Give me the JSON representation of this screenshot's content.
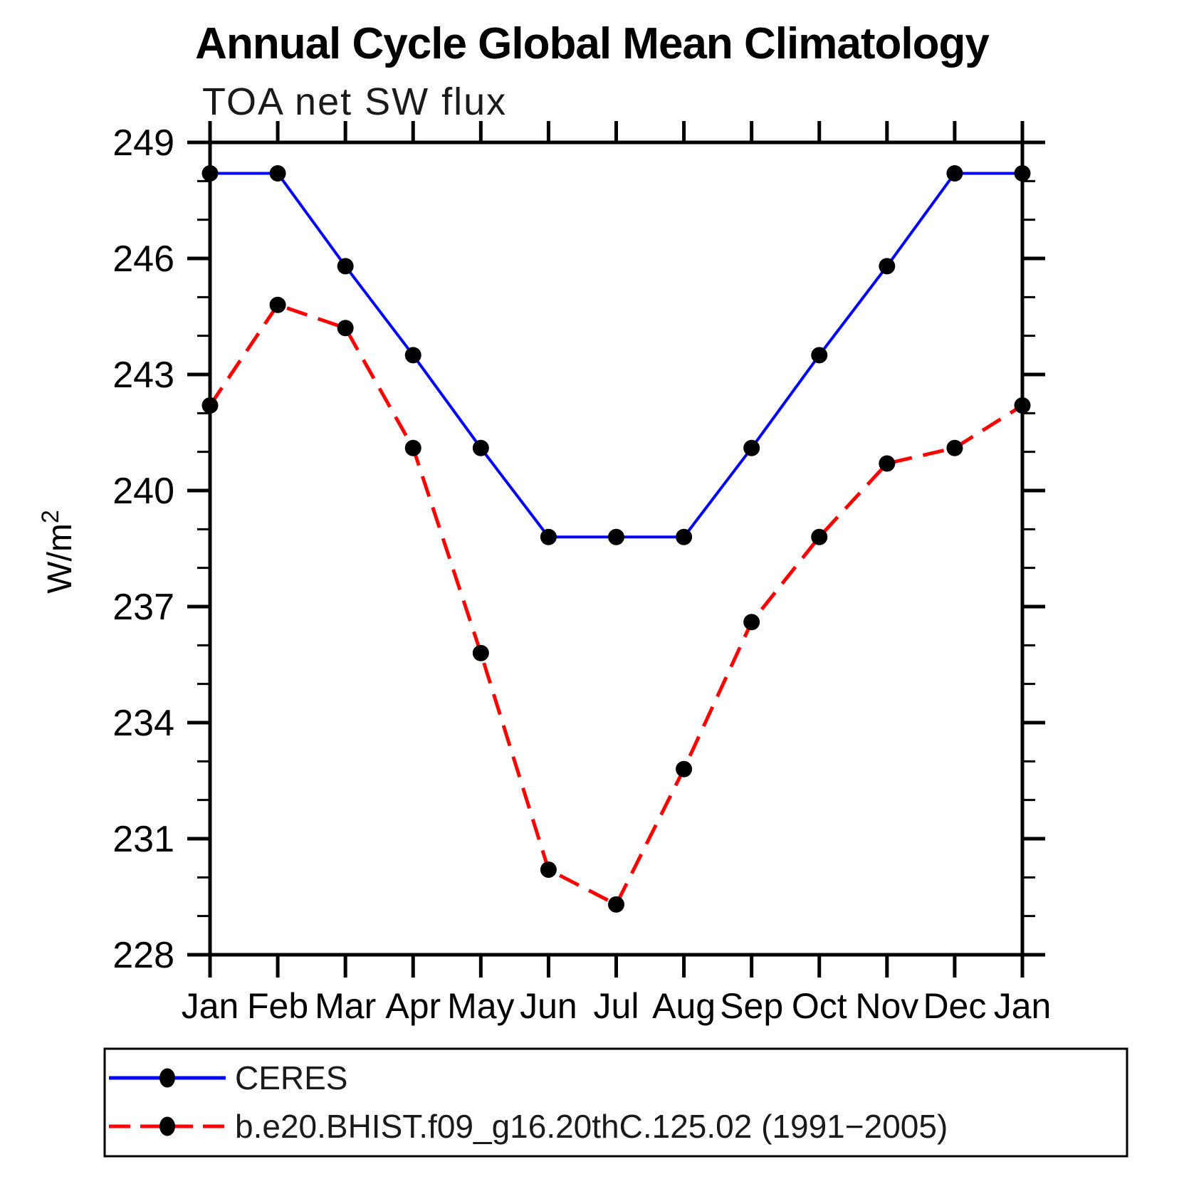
{
  "title": "Annual Cycle Global Mean Climatology",
  "subtitle": "TOA net SW flux",
  "y_axis_label": {
    "base": "W/m",
    "exponent": "2"
  },
  "colors": {
    "frame": "#000000",
    "ceres_line": "#0000ff",
    "model_line": "#ff0000",
    "marker": "#000000"
  },
  "chart_data": {
    "type": "line",
    "title": "Annual Cycle Global Mean Climatology",
    "subtitle": "TOA net SW flux",
    "xlabel": "",
    "ylabel": "W/m^2",
    "categories": [
      "Jan",
      "Feb",
      "Mar",
      "Apr",
      "May",
      "Jun",
      "Jul",
      "Aug",
      "Sep",
      "Oct",
      "Nov",
      "Dec",
      "Jan"
    ],
    "ylim": [
      228,
      249
    ],
    "yticks_major": [
      228,
      231,
      234,
      237,
      240,
      243,
      246,
      249
    ],
    "ytick_minor_step": 1,
    "grid": false,
    "legend_position": "bottom-box",
    "series": [
      {
        "name": "CERES",
        "color": "#0000ff",
        "line_style": "solid",
        "line_width": 4,
        "marker": "circle",
        "marker_color": "#000000",
        "values": [
          248.2,
          248.2,
          245.8,
          243.5,
          241.1,
          238.8,
          238.8,
          238.8,
          241.1,
          243.5,
          245.8,
          248.2,
          248.2
        ]
      },
      {
        "name": "b.e20.BHIST.f09_g16.20thC.125.02 (1991−2005)",
        "color": "#ff0000",
        "line_style": "dashed",
        "line_width": 5,
        "marker": "circle",
        "marker_color": "#000000",
        "values": [
          242.2,
          244.8,
          244.2,
          241.1,
          235.8,
          230.2,
          229.3,
          232.8,
          236.6,
          238.8,
          240.7,
          241.1,
          242.2
        ]
      }
    ]
  }
}
